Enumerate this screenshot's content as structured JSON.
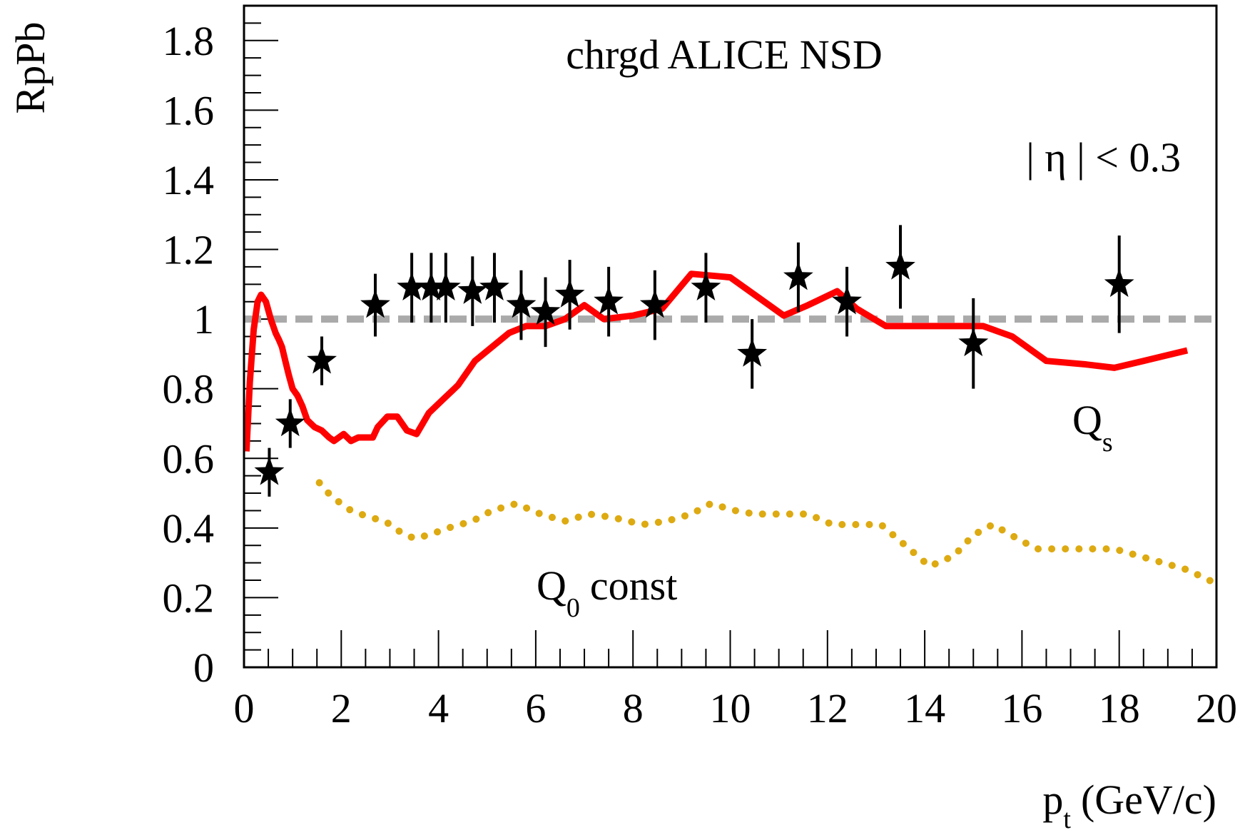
{
  "chart_data": {
    "type": "line",
    "title": "chrgd ALICE NSD",
    "annotation": "| η | < 0.3",
    "xlabel": "p",
    "xlabel_sub": "t",
    "xlabel_unit": "(GeV/c)",
    "ylabel": "RpPb",
    "xlim": [
      0,
      20
    ],
    "ylim": [
      0,
      1.9
    ],
    "xticks": [
      0,
      2,
      4,
      6,
      8,
      10,
      12,
      14,
      16,
      18,
      20
    ],
    "yticks": [
      0,
      0.2,
      0.4,
      0.6,
      0.8,
      1,
      1.2,
      1.4,
      1.6,
      1.8
    ],
    "xtick_labels": [
      "0",
      "2",
      "4",
      "6",
      "8",
      "10",
      "12",
      "14",
      "16",
      "18",
      "20"
    ],
    "ytick_labels": [
      "0",
      "0.2",
      "0.4",
      "0.6",
      "0.8",
      "1",
      "1.2",
      "1.4",
      "1.6",
      "1.8"
    ],
    "grid": false,
    "reference_line": {
      "y": 1.0,
      "color": "#aaaaaa",
      "style": "dashed"
    },
    "series": [
      {
        "name": "Q",
        "name_sub": "s",
        "color": "#ff0000",
        "style": "solid",
        "points": [
          [
            0.05,
            0.62
          ],
          [
            0.12,
            0.82
          ],
          [
            0.2,
            0.97
          ],
          [
            0.28,
            1.05
          ],
          [
            0.35,
            1.07
          ],
          [
            0.45,
            1.05
          ],
          [
            0.55,
            1.0
          ],
          [
            0.65,
            0.96
          ],
          [
            0.72,
            0.94
          ],
          [
            0.78,
            0.92
          ],
          [
            0.85,
            0.88
          ],
          [
            0.92,
            0.84
          ],
          [
            1.0,
            0.8
          ],
          [
            1.1,
            0.78
          ],
          [
            1.2,
            0.75
          ],
          [
            1.3,
            0.71
          ],
          [
            1.45,
            0.69
          ],
          [
            1.6,
            0.68
          ],
          [
            1.75,
            0.66
          ],
          [
            1.85,
            0.65
          ],
          [
            1.95,
            0.66
          ],
          [
            2.05,
            0.67
          ],
          [
            2.2,
            0.65
          ],
          [
            2.35,
            0.66
          ],
          [
            2.5,
            0.66
          ],
          [
            2.65,
            0.66
          ],
          [
            2.75,
            0.69
          ],
          [
            2.95,
            0.72
          ],
          [
            3.15,
            0.72
          ],
          [
            3.35,
            0.68
          ],
          [
            3.55,
            0.67
          ],
          [
            3.8,
            0.73
          ],
          [
            4.1,
            0.77
          ],
          [
            4.4,
            0.81
          ],
          [
            4.75,
            0.88
          ],
          [
            5.1,
            0.92
          ],
          [
            5.45,
            0.96
          ],
          [
            5.8,
            0.98
          ],
          [
            6.2,
            0.98
          ],
          [
            6.6,
            1.0
          ],
          [
            7.0,
            1.04
          ],
          [
            7.4,
            1.0
          ],
          [
            8.0,
            1.01
          ],
          [
            8.6,
            1.03
          ],
          [
            9.2,
            1.13
          ],
          [
            10.0,
            1.12
          ],
          [
            10.6,
            1.06
          ],
          [
            11.1,
            1.01
          ],
          [
            11.6,
            1.04
          ],
          [
            12.2,
            1.08
          ],
          [
            12.6,
            1.03
          ],
          [
            13.2,
            0.98
          ],
          [
            13.9,
            0.98
          ],
          [
            14.6,
            0.98
          ],
          [
            15.2,
            0.98
          ],
          [
            15.8,
            0.95
          ],
          [
            16.5,
            0.88
          ],
          [
            17.3,
            0.87
          ],
          [
            17.9,
            0.86
          ],
          [
            18.5,
            0.88
          ],
          [
            19.4,
            0.91
          ]
        ]
      },
      {
        "name": "Q",
        "name_sub": "0",
        "name_suffix": "const",
        "color": "#ddaa11",
        "style": "dotted",
        "points": [
          [
            1.55,
            0.53
          ],
          [
            1.8,
            0.49
          ],
          [
            2.2,
            0.45
          ],
          [
            2.6,
            0.43
          ],
          [
            2.9,
            0.42
          ],
          [
            3.2,
            0.39
          ],
          [
            3.5,
            0.37
          ],
          [
            3.8,
            0.38
          ],
          [
            4.2,
            0.4
          ],
          [
            4.7,
            0.42
          ],
          [
            5.1,
            0.45
          ],
          [
            5.6,
            0.47
          ],
          [
            6.1,
            0.44
          ],
          [
            6.6,
            0.42
          ],
          [
            7.1,
            0.44
          ],
          [
            7.6,
            0.43
          ],
          [
            8.2,
            0.41
          ],
          [
            8.7,
            0.42
          ],
          [
            9.2,
            0.44
          ],
          [
            9.6,
            0.47
          ],
          [
            10.1,
            0.45
          ],
          [
            10.5,
            0.44
          ],
          [
            11.1,
            0.44
          ],
          [
            11.6,
            0.44
          ],
          [
            12.1,
            0.41
          ],
          [
            12.6,
            0.41
          ],
          [
            13.1,
            0.41
          ],
          [
            13.6,
            0.35
          ],
          [
            14.1,
            0.29
          ],
          [
            14.6,
            0.32
          ],
          [
            15.0,
            0.38
          ],
          [
            15.4,
            0.41
          ],
          [
            15.9,
            0.37
          ],
          [
            16.3,
            0.34
          ],
          [
            16.8,
            0.34
          ],
          [
            17.4,
            0.34
          ],
          [
            17.9,
            0.34
          ],
          [
            18.4,
            0.32
          ],
          [
            18.9,
            0.3
          ],
          [
            19.4,
            0.28
          ],
          [
            20.0,
            0.24
          ]
        ]
      },
      {
        "name": "chrgd ALICE NSD",
        "color": "#000000",
        "style": "star-markers",
        "points": [
          [
            0.52,
            0.56,
            0.07
          ],
          [
            0.95,
            0.7,
            0.07
          ],
          [
            1.6,
            0.88,
            0.07
          ],
          [
            2.7,
            1.04,
            0.09
          ],
          [
            3.45,
            1.09,
            0.1
          ],
          [
            3.85,
            1.09,
            0.1
          ],
          [
            4.15,
            1.09,
            0.1
          ],
          [
            4.7,
            1.08,
            0.1
          ],
          [
            5.15,
            1.09,
            0.1
          ],
          [
            5.7,
            1.04,
            0.1
          ],
          [
            6.2,
            1.02,
            0.1
          ],
          [
            6.7,
            1.07,
            0.1
          ],
          [
            7.5,
            1.05,
            0.1
          ],
          [
            8.45,
            1.04,
            0.1
          ],
          [
            9.5,
            1.09,
            0.1
          ],
          [
            10.45,
            0.9,
            0.1
          ],
          [
            11.4,
            1.12,
            0.1
          ],
          [
            12.4,
            1.05,
            0.1
          ],
          [
            13.5,
            1.15,
            0.12
          ],
          [
            15.0,
            0.93,
            0.13
          ],
          [
            18.0,
            1.1,
            0.14
          ]
        ]
      }
    ]
  }
}
